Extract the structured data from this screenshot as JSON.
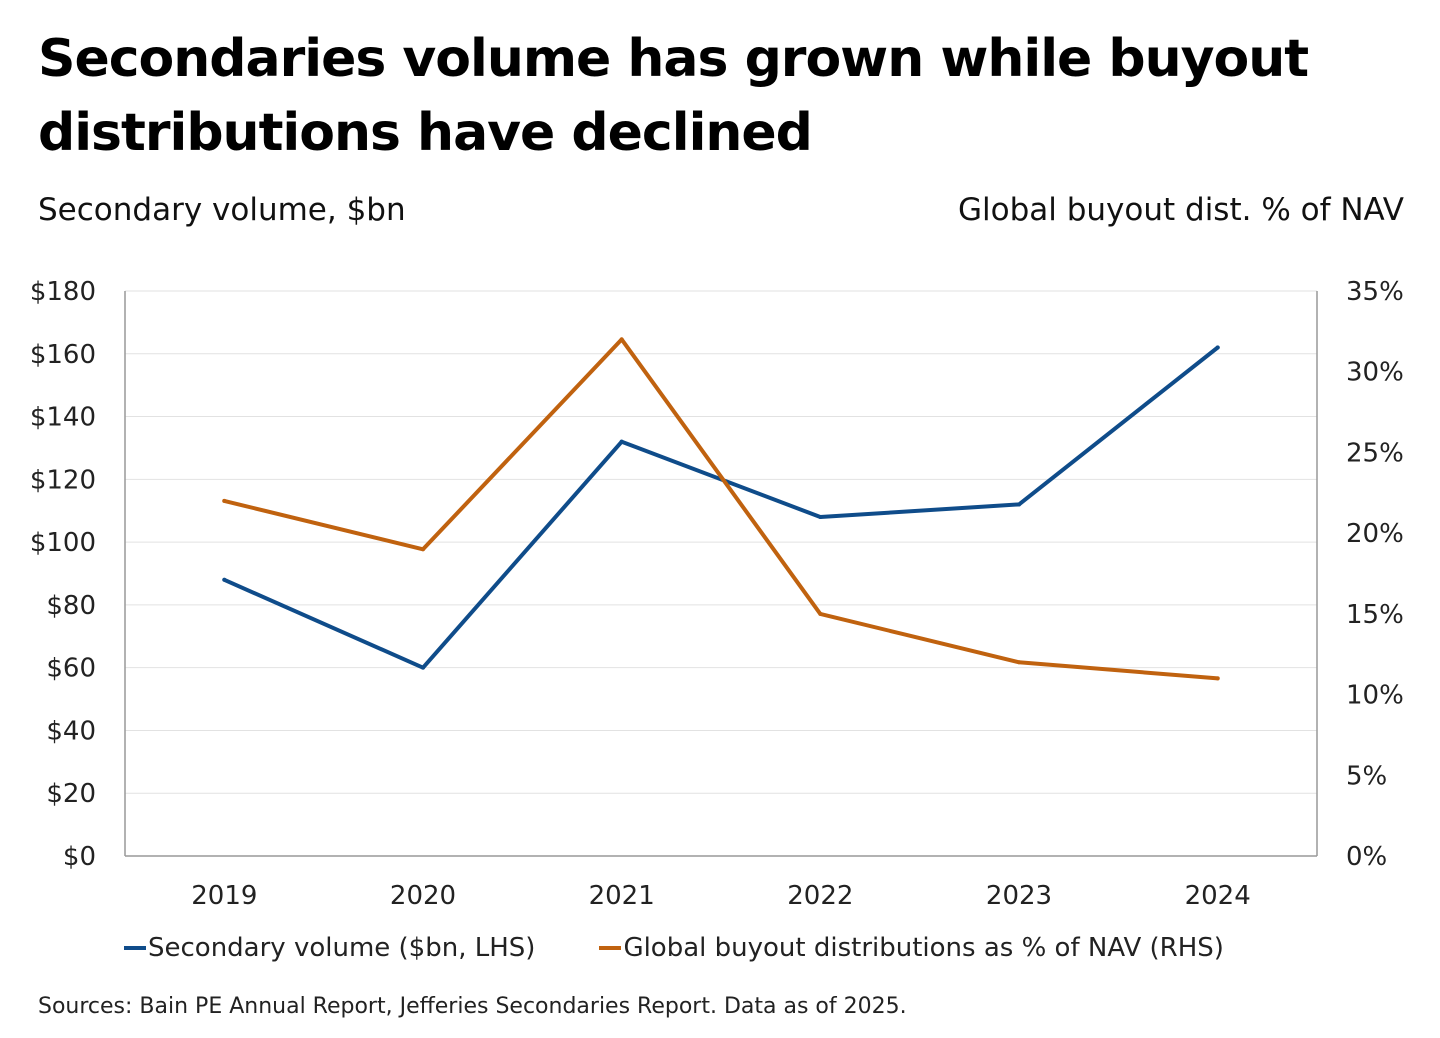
{
  "title": "Secondaries volume has grown while buyout distributions have declined",
  "left_axis_title": "Secondary volume, $bn",
  "right_axis_title": "Global buyout dist. % of NAV",
  "colors": {
    "secondary": "#0f4c8a",
    "buyout": "#c0620f",
    "grid": "#e2e2e2",
    "axis": "#999999"
  },
  "chart_data": {
    "type": "line",
    "categories": [
      "2019",
      "2020",
      "2021",
      "2022",
      "2023",
      "2024"
    ],
    "left_axis": {
      "min": 0,
      "max": 180,
      "ticks": [
        0,
        20,
        40,
        60,
        80,
        100,
        120,
        140,
        160,
        180
      ],
      "tick_labels": [
        "$0",
        "$20",
        "$40",
        "$60",
        "$80",
        "$100",
        "$120",
        "$140",
        "$160",
        "$180"
      ]
    },
    "right_axis": {
      "min": 0,
      "max": 35,
      "ticks": [
        0,
        5,
        10,
        15,
        20,
        25,
        30,
        35
      ],
      "tick_labels": [
        "0%",
        "5%",
        "10%",
        "15%",
        "20%",
        "25%",
        "30%",
        "35%"
      ]
    },
    "series": [
      {
        "name": "Secondary volume ($bn, LHS)",
        "axis": "left",
        "color_key": "secondary",
        "values": [
          88,
          60,
          132,
          108,
          112,
          162
        ]
      },
      {
        "name": "Global buyout distributions as % of NAV (RHS)",
        "axis": "right",
        "color_key": "buyout",
        "values": [
          22,
          19,
          32,
          15,
          12,
          11
        ]
      }
    ],
    "grid": true,
    "legend_position": "bottom"
  },
  "source": "Sources: Bain PE Annual Report, Jefferies Secondaries Report. Data as of 2025."
}
